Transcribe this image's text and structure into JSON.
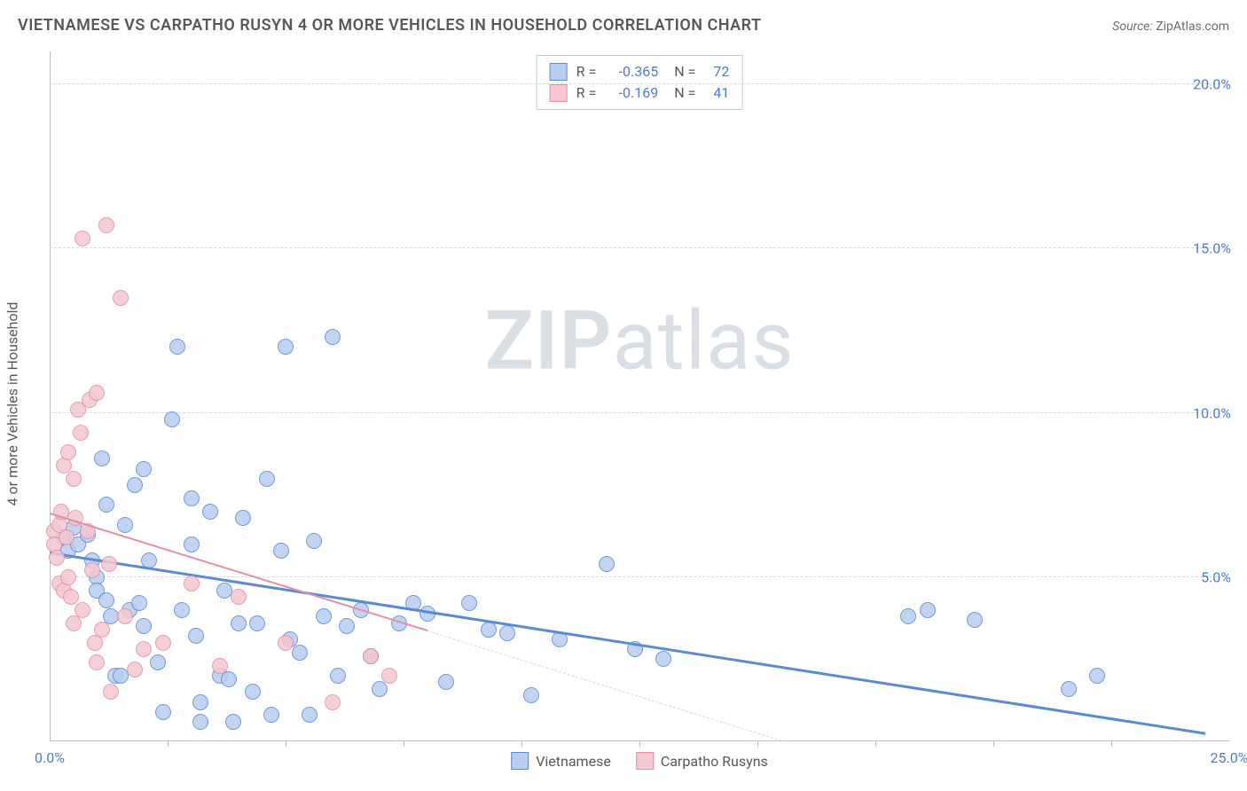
{
  "header": {
    "title": "VIETNAMESE VS CARPATHO RUSYN 4 OR MORE VEHICLES IN HOUSEHOLD CORRELATION CHART",
    "source_label": "Source:",
    "source_value": "ZipAtlas.com"
  },
  "axes": {
    "y_label": "4 or more Vehicles in Household",
    "xlim": [
      0,
      25
    ],
    "ylim": [
      0,
      21
    ],
    "x_ticks": [
      0,
      25
    ],
    "x_tick_labels": [
      "0.0%",
      "25.0%"
    ],
    "x_minor_ticks": [
      2.5,
      5,
      7.5,
      10,
      12.5,
      15,
      17.5,
      20,
      22.5
    ],
    "y_ticks": [
      5,
      10,
      15,
      20
    ],
    "y_tick_labels": [
      "5.0%",
      "10.0%",
      "15.0%",
      "20.0%"
    ],
    "grid_color": "#d8d8d8"
  },
  "watermark": {
    "zip": "ZIP",
    "atlas": "atlas"
  },
  "series": [
    {
      "name": "Vietnamese",
      "fill": "#b8cdef",
      "stroke": "#5a8cd6",
      "marker_radius": 9,
      "trend": {
        "x1": 0,
        "y1": 5.7,
        "x2": 24.5,
        "y2": 0.2,
        "solid_until_x": 24.5,
        "width": 3
      },
      "R": "-0.365",
      "N": "72",
      "points": [
        [
          0.3,
          6.2
        ],
        [
          0.4,
          5.8
        ],
        [
          0.5,
          6.5
        ],
        [
          0.6,
          6.0
        ],
        [
          0.8,
          6.3
        ],
        [
          0.9,
          5.5
        ],
        [
          1.0,
          5.0
        ],
        [
          1.0,
          4.6
        ],
        [
          1.1,
          8.6
        ],
        [
          1.2,
          7.2
        ],
        [
          1.2,
          4.3
        ],
        [
          1.3,
          3.8
        ],
        [
          1.4,
          2.0
        ],
        [
          1.5,
          2.0
        ],
        [
          1.6,
          6.6
        ],
        [
          1.7,
          4.0
        ],
        [
          1.8,
          7.8
        ],
        [
          1.9,
          4.2
        ],
        [
          2.0,
          8.3
        ],
        [
          2.0,
          3.5
        ],
        [
          2.1,
          5.5
        ],
        [
          2.3,
          2.4
        ],
        [
          2.4,
          0.9
        ],
        [
          2.6,
          9.8
        ],
        [
          2.7,
          12.0
        ],
        [
          2.8,
          4.0
        ],
        [
          3.0,
          7.4
        ],
        [
          3.0,
          6.0
        ],
        [
          3.1,
          3.2
        ],
        [
          3.2,
          1.2
        ],
        [
          3.2,
          0.6
        ],
        [
          3.4,
          7.0
        ],
        [
          3.6,
          2.0
        ],
        [
          3.7,
          4.6
        ],
        [
          3.8,
          1.9
        ],
        [
          3.9,
          0.6
        ],
        [
          4.0,
          3.6
        ],
        [
          4.1,
          6.8
        ],
        [
          4.3,
          1.5
        ],
        [
          4.4,
          3.6
        ],
        [
          4.6,
          8.0
        ],
        [
          4.7,
          0.8
        ],
        [
          4.9,
          5.8
        ],
        [
          5.0,
          12.0
        ],
        [
          5.1,
          3.1
        ],
        [
          5.3,
          2.7
        ],
        [
          5.5,
          0.8
        ],
        [
          5.6,
          6.1
        ],
        [
          5.8,
          3.8
        ],
        [
          6.0,
          12.3
        ],
        [
          6.1,
          2.0
        ],
        [
          6.3,
          3.5
        ],
        [
          6.6,
          4.0
        ],
        [
          6.8,
          2.6
        ],
        [
          7.0,
          1.6
        ],
        [
          7.4,
          3.6
        ],
        [
          7.7,
          4.2
        ],
        [
          8.0,
          3.9
        ],
        [
          8.4,
          1.8
        ],
        [
          8.9,
          4.2
        ],
        [
          9.3,
          3.4
        ],
        [
          9.7,
          3.3
        ],
        [
          10.2,
          1.4
        ],
        [
          10.8,
          3.1
        ],
        [
          11.8,
          5.4
        ],
        [
          12.4,
          2.8
        ],
        [
          18.2,
          3.8
        ],
        [
          18.6,
          4.0
        ],
        [
          19.6,
          3.7
        ],
        [
          21.6,
          1.6
        ],
        [
          22.2,
          2.0
        ],
        [
          13.0,
          2.5
        ]
      ]
    },
    {
      "name": "Carpatho Rusyns",
      "fill": "#f4c7d2",
      "stroke": "#e38fa5",
      "marker_radius": 9,
      "trend": {
        "x1": 0,
        "y1": 6.9,
        "x2": 15.5,
        "y2": 0,
        "solid_until_x": 8.0,
        "width": 2
      },
      "R": "-0.169",
      "N": "41",
      "points": [
        [
          0.1,
          6.4
        ],
        [
          0.1,
          6.0
        ],
        [
          0.15,
          5.6
        ],
        [
          0.2,
          6.6
        ],
        [
          0.2,
          4.8
        ],
        [
          0.25,
          7.0
        ],
        [
          0.3,
          8.4
        ],
        [
          0.3,
          4.6
        ],
        [
          0.35,
          6.2
        ],
        [
          0.4,
          8.8
        ],
        [
          0.4,
          5.0
        ],
        [
          0.45,
          4.4
        ],
        [
          0.5,
          8.0
        ],
        [
          0.5,
          3.6
        ],
        [
          0.55,
          6.8
        ],
        [
          0.6,
          10.1
        ],
        [
          0.65,
          9.4
        ],
        [
          0.7,
          15.3
        ],
        [
          0.7,
          4.0
        ],
        [
          0.8,
          6.4
        ],
        [
          0.85,
          10.4
        ],
        [
          0.9,
          5.2
        ],
        [
          0.95,
          3.0
        ],
        [
          1.0,
          10.6
        ],
        [
          1.0,
          2.4
        ],
        [
          1.1,
          3.4
        ],
        [
          1.2,
          15.7
        ],
        [
          1.25,
          5.4
        ],
        [
          1.3,
          1.5
        ],
        [
          1.5,
          13.5
        ],
        [
          1.6,
          3.8
        ],
        [
          1.8,
          2.2
        ],
        [
          2.0,
          2.8
        ],
        [
          2.4,
          3.0
        ],
        [
          3.0,
          4.8
        ],
        [
          3.6,
          2.3
        ],
        [
          4.0,
          4.4
        ],
        [
          5.0,
          3.0
        ],
        [
          6.0,
          1.2
        ],
        [
          6.8,
          2.6
        ],
        [
          7.2,
          2.0
        ]
      ]
    }
  ],
  "legend_bottom": [
    {
      "label": "Vietnamese",
      "fill": "#b8cdef",
      "stroke": "#5a8cd6"
    },
    {
      "label": "Carpatho Rusyns",
      "fill": "#f4c7d2",
      "stroke": "#e38fa5"
    }
  ]
}
